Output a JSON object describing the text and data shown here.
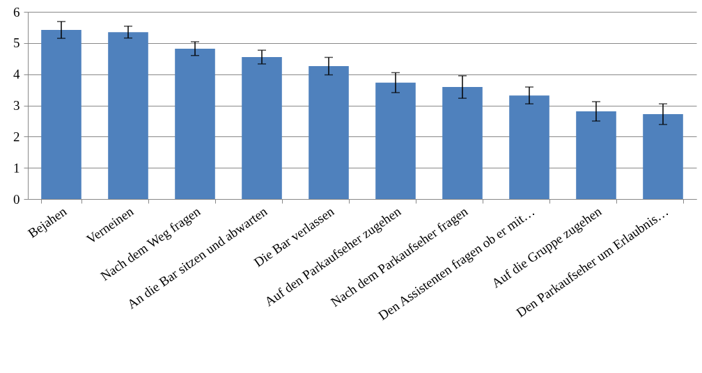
{
  "chart_data": {
    "type": "bar",
    "categories": [
      "Bejahen",
      "Verneinen",
      "Nach dem Weg fragen",
      "An die Bar sitzen und abwarten",
      "Die Bar verlassen",
      "Auf den Parkaufseher zugehen",
      "Nach dem Parkaufseher fragen",
      "Den Assistenten fragen ob er mit…",
      "Auf die Gruppe zugehen",
      "Den Parkaufseher um Erlaubnis…"
    ],
    "values": [
      5.42,
      5.35,
      4.82,
      4.55,
      4.26,
      3.73,
      3.59,
      3.32,
      2.81,
      2.72
    ],
    "errors": [
      0.27,
      0.19,
      0.22,
      0.22,
      0.28,
      0.32,
      0.36,
      0.27,
      0.31,
      0.33
    ],
    "color": "#4f81bd",
    "ylim": [
      0,
      6
    ],
    "yticks": [
      0,
      1,
      2,
      3,
      4,
      5,
      6
    ],
    "grid": "y"
  }
}
